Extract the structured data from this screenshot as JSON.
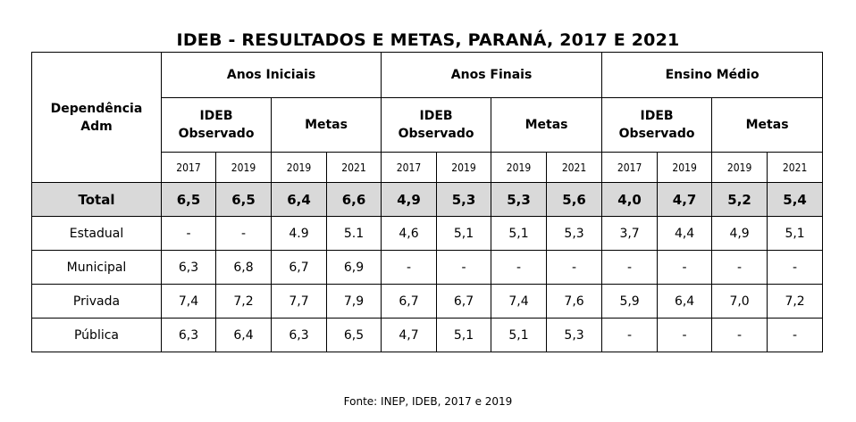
{
  "title": "IDEB - RESULTADOS E METAS, PARANÁ, 2017 E 2021",
  "header": {
    "dependencia": "Dependência\nAdm",
    "groups": [
      "Anos Iniciais",
      "Anos Finais",
      "Ensino Médio"
    ],
    "ideb_observado": "IDEB\nObservado",
    "metas": "Metas",
    "years": [
      "2017",
      "2019",
      "2019",
      "2021",
      "2017",
      "2019",
      "2019",
      "2021",
      "2017",
      "2019",
      "2019",
      "2021"
    ]
  },
  "rows": [
    {
      "label": "Total",
      "values": [
        "6,5",
        "6,5",
        "6,4",
        "6,6",
        "4,9",
        "5,3",
        "5,3",
        "5,6",
        "4,0",
        "4,7",
        "5,2",
        "5,4"
      ]
    },
    {
      "label": "Estadual",
      "values": [
        "-",
        "-",
        "4.9",
        "5.1",
        "4,6",
        "5,1",
        "5,1",
        "5,3",
        "3,7",
        "4,4",
        "4,9",
        "5,1"
      ]
    },
    {
      "label": "Municipal",
      "values": [
        "6,3",
        "6,8",
        "6,7",
        "6,9",
        "-",
        "-",
        "-",
        "-",
        "-",
        "-",
        "-",
        "-"
      ]
    },
    {
      "label": "Privada",
      "values": [
        "7,4",
        "7,2",
        "7,7",
        "7,9",
        "6,7",
        "6,7",
        "7,4",
        "7,6",
        "5,9",
        "6,4",
        "7,0",
        "7,2"
      ]
    },
    {
      "label": "Pública",
      "values": [
        "6,3",
        "6,4",
        "6,3",
        "6,5",
        "4,7",
        "5,1",
        "5,1",
        "5,3",
        "-",
        "-",
        "-",
        "-"
      ]
    }
  ],
  "source": "Fonte: INEP, IDEB, 2017 e 2019"
}
